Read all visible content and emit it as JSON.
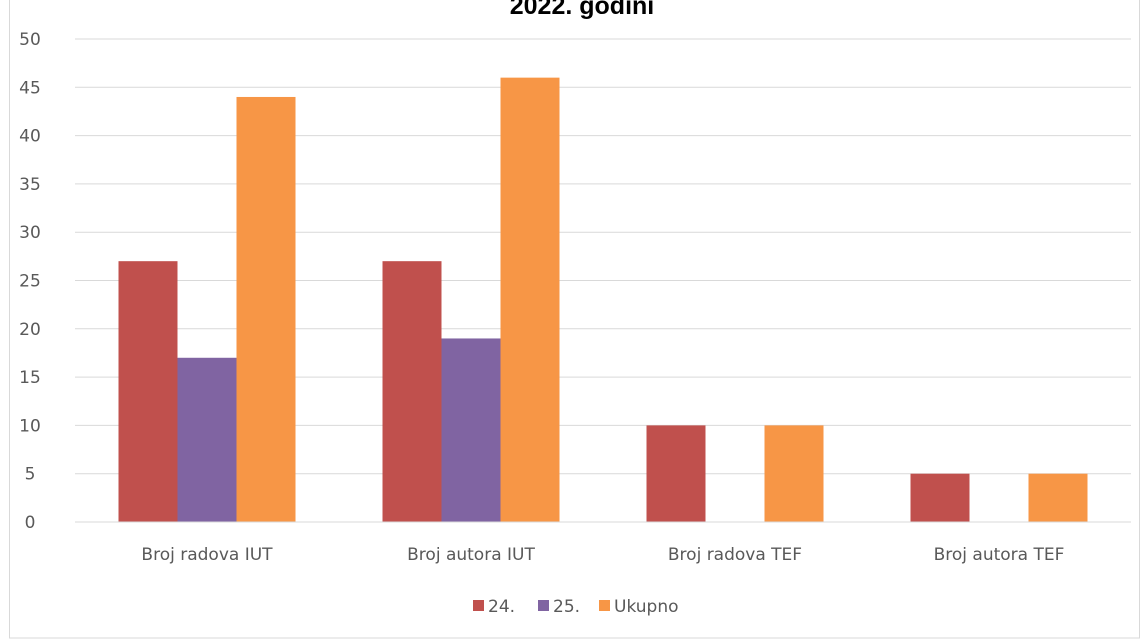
{
  "chart_data": {
    "type": "bar",
    "title": "2022. godini",
    "categories": [
      "Broj radova IUT",
      "Broj autora IUT",
      "Broj radova TEF",
      "Broj autora TEF"
    ],
    "series": [
      {
        "name": "24.",
        "color": "#c0504d",
        "values": [
          27,
          27,
          10,
          5
        ]
      },
      {
        "name": "25.",
        "color": "#8064a2",
        "values": [
          17,
          19,
          0,
          0
        ]
      },
      {
        "name": "Ukupno",
        "color": "#f79646",
        "values": [
          44,
          46,
          10,
          5
        ]
      }
    ],
    "y_ticks": [
      "0",
      "5",
      "10",
      "15",
      "20",
      "25",
      "30",
      "35",
      "40",
      "45",
      "50"
    ],
    "ylim": [
      0,
      50
    ],
    "ytick_step": 5,
    "grid": true,
    "legend_position": "bottom",
    "xlabel": "",
    "ylabel": ""
  }
}
